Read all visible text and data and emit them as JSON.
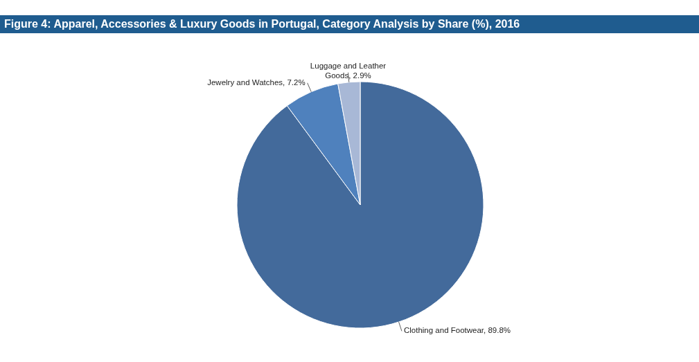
{
  "chart_data": {
    "type": "pie",
    "title": "Figure 4: Apparel, Accessories & Luxury Goods in Portugal, Category Analysis by Share (%), 2016",
    "categories": [
      "Clothing and Footwear",
      "Jewelry and Watches",
      "Luggage and Leather Goods"
    ],
    "values": [
      89.8,
      7.2,
      2.9
    ],
    "value_labels": [
      "89.8%",
      "7.2%",
      "2.9%"
    ],
    "colors": [
      "#436a9b",
      "#4f81bd",
      "#a8b8d6"
    ]
  }
}
